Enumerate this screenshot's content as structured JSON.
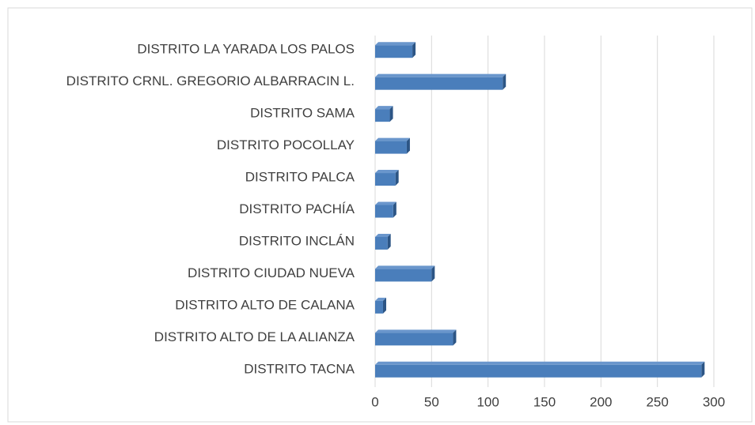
{
  "chart_data": {
    "type": "bar",
    "orientation": "horizontal",
    "categories": [
      "DISTRITO TACNA",
      "DISTRITO ALTO DE LA ALIANZA",
      "DISTRITO ALTO DE CALANA",
      "DISTRITO CIUDAD NUEVA",
      "DISTRITO INCLÁN",
      "DISTRITO PACHÍA",
      "DISTRITO PALCA",
      "DISTRITO POCOLLAY",
      "DISTRITO SAMA",
      "DISTRITO CRNL. GREGORIO ALBARRACIN L.",
      "DISTRITO LA YARADA LOS PALOS"
    ],
    "values": [
      289,
      69,
      7,
      50,
      11,
      16,
      18,
      28,
      13,
      113,
      33
    ],
    "color": "#4a7ebb",
    "xlim": [
      0,
      300
    ],
    "xticks": [
      0,
      50,
      100,
      150,
      200,
      250,
      300
    ],
    "grid": true
  }
}
